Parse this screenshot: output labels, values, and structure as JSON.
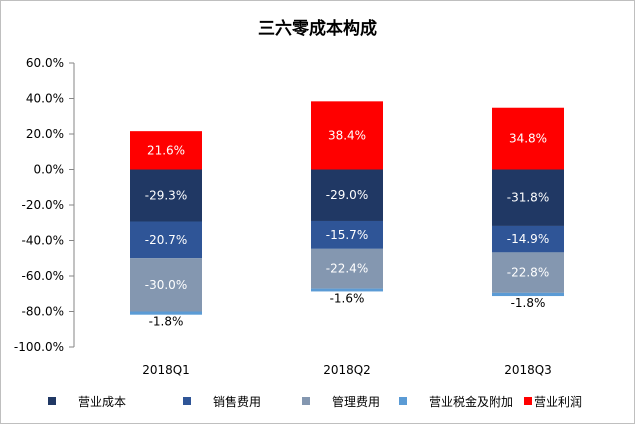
{
  "chart_data": {
    "type": "bar",
    "stacked": true,
    "title": "三六零成本构成",
    "categories": [
      "2018Q1",
      "2018Q2",
      "2018Q3"
    ],
    "ylim": [
      -100,
      60
    ],
    "yticks": [
      "60.0%",
      "40.0%",
      "20.0%",
      "0.0%",
      "-20.0%",
      "-40.0%",
      "-60.0%",
      "-80.0%",
      "-100.0%"
    ],
    "grid": false,
    "legend_position": "bottom",
    "series": [
      {
        "name": "营业成本",
        "color": "#203864",
        "values": [
          -29.3,
          -29.0,
          -31.8
        ],
        "labels": [
          "-29.3%",
          "-29.0%",
          "-31.8%"
        ]
      },
      {
        "name": "销售费用",
        "color": "#2f5597",
        "values": [
          -20.7,
          -15.7,
          -14.9
        ],
        "labels": [
          "-20.7%",
          "-15.7%",
          "-14.9%"
        ]
      },
      {
        "name": "管理费用",
        "color": "#8497b0",
        "values": [
          -30.0,
          -22.4,
          -22.8
        ],
        "labels": [
          "-30.0%",
          "-22.4%",
          "-22.8%"
        ]
      },
      {
        "name": "营业税金及附加",
        "color": "#5b9bd5",
        "values": [
          -1.8,
          -1.6,
          -1.8
        ],
        "labels": [
          "-1.8%",
          "-1.6%",
          "-1.8%"
        ]
      },
      {
        "name": "营业利润",
        "color": "#ff0000",
        "values": [
          21.6,
          38.4,
          34.8
        ],
        "labels": [
          "21.6%",
          "38.4%",
          "34.8%"
        ]
      }
    ]
  }
}
